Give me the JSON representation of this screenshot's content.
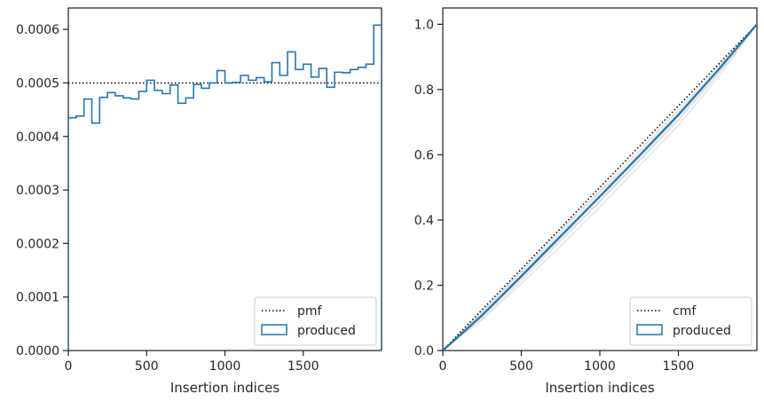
{
  "chart_data": [
    {
      "type": "histogram-step",
      "xlabel": "Insertion indices",
      "ylabel": "",
      "xlim": [
        0,
        2000
      ],
      "ylim": [
        0,
        0.00064
      ],
      "xticks": [
        0,
        500,
        1000,
        1500
      ],
      "xtick_labels": [
        "0",
        "500",
        "1000",
        "1500"
      ],
      "yticks": [
        0,
        0.0001,
        0.0002,
        0.0003,
        0.0004,
        0.0005,
        0.0006
      ],
      "ytick_labels": [
        "0.0000",
        "0.0001",
        "0.0002",
        "0.0003",
        "0.0004",
        "0.0005",
        "0.0006"
      ],
      "legend_position": "lower-right",
      "reference": {
        "name": "pmf",
        "value": 0.0005,
        "style": "dotted",
        "color": "#000000"
      },
      "series": [
        {
          "name": "produced",
          "color": "#1f77b4",
          "bin_width": 50,
          "values": [
            0.000435,
            0.000438,
            0.00047,
            0.000425,
            0.000473,
            0.000482,
            0.000476,
            0.000472,
            0.00047,
            0.000484,
            0.000505,
            0.000486,
            0.00048,
            0.000496,
            0.000462,
            0.000472,
            0.000497,
            0.00049,
            0.0005,
            0.000523,
            0.0005,
            0.000501,
            0.000514,
            0.000505,
            0.00051,
            0.000502,
            0.000538,
            0.000514,
            0.000558,
            0.000525,
            0.000535,
            0.000511,
            0.000527,
            0.000492,
            0.00052,
            0.000519,
            0.000525,
            0.000529,
            0.000535,
            0.000608
          ]
        }
      ]
    },
    {
      "type": "line",
      "xlabel": "Insertion indices",
      "ylabel": "",
      "xlim": [
        0,
        2000
      ],
      "ylim": [
        0,
        1.05
      ],
      "xticks": [
        0,
        500,
        1000,
        1500
      ],
      "xtick_labels": [
        "0",
        "500",
        "1000",
        "1500"
      ],
      "yticks": [
        0,
        0.2,
        0.4,
        0.6,
        0.8,
        1.0
      ],
      "ytick_labels": [
        "0.0",
        "0.2",
        "0.4",
        "0.6",
        "0.8",
        "1.0"
      ],
      "legend_position": "lower-right",
      "reference": {
        "name": "cmf",
        "x": [
          0,
          2000
        ],
        "y": [
          0,
          1
        ],
        "style": "dotted",
        "color": "#000000"
      },
      "series": [
        {
          "name": "produced",
          "color": "#1f77b4",
          "x": [
            0,
            250,
            500,
            750,
            1000,
            1250,
            1500,
            1750,
            2000
          ],
          "y": [
            0,
            0.108,
            0.228,
            0.35,
            0.472,
            0.596,
            0.722,
            0.858,
            1.0
          ]
        }
      ],
      "background_lines": {
        "color": "#d9d9d9",
        "x": [
          0,
          250,
          500,
          750,
          1000,
          1250,
          1500,
          1750,
          2000
        ],
        "lines": [
          [
            0,
            0.1,
            0.215,
            0.335,
            0.455,
            0.58,
            0.705,
            0.845,
            1.0
          ],
          [
            0,
            0.115,
            0.24,
            0.365,
            0.49,
            0.612,
            0.738,
            0.868,
            1.0
          ],
          [
            0,
            0.095,
            0.205,
            0.32,
            0.44,
            0.565,
            0.69,
            0.835,
            1.0
          ],
          [
            0,
            0.12,
            0.245,
            0.37,
            0.485,
            0.6,
            0.73,
            0.862,
            1.0
          ],
          [
            0,
            0.105,
            0.222,
            0.342,
            0.46,
            0.585,
            0.712,
            0.85,
            1.0
          ],
          [
            0,
            0.11,
            0.232,
            0.358,
            0.478,
            0.604,
            0.728,
            0.86,
            1.0
          ]
        ]
      }
    }
  ]
}
